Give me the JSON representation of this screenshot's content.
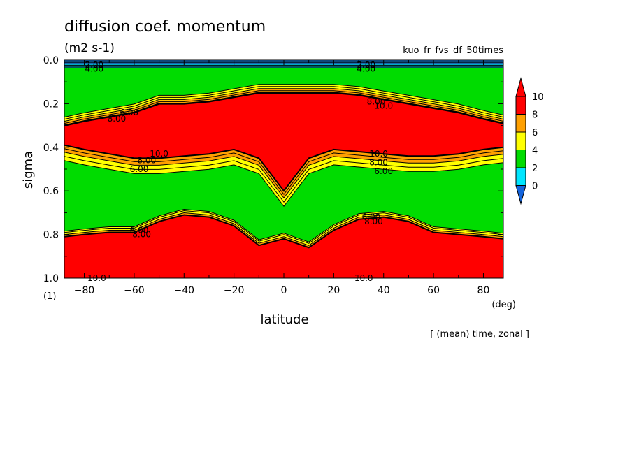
{
  "chart_data": {
    "type": "contour",
    "title": "diffusion coef. momentum",
    "units": "(m2 s-1)",
    "run_name": "kuo_fr_fvs_df_50times",
    "footnote": "[ (mean) time, zonal ]",
    "xlabel": "latitude",
    "x_unit": "(deg)",
    "ylabel": "sigma",
    "y_unit": "(1)",
    "xlim": [
      -88,
      88
    ],
    "ylim": [
      0.0,
      1.0
    ],
    "y_inverted": true,
    "x_ticks": [
      -80,
      -60,
      -40,
      -20,
      0,
      20,
      40,
      60,
      80
    ],
    "x_tick_labels": [
      "−80",
      "−60",
      "−40",
      "−20",
      "0",
      "20",
      "40",
      "60",
      "80"
    ],
    "y_ticks": [
      0.0,
      0.2,
      0.4,
      0.6,
      0.8,
      1.0
    ],
    "y_tick_labels": [
      "0.0",
      "0.2",
      "0.4",
      "0.6",
      "0.8",
      "1.0"
    ],
    "colorbar": {
      "levels": [
        0,
        2,
        4,
        6,
        8,
        10
      ],
      "labels": [
        "0",
        "2",
        "4",
        "6",
        "8",
        "10"
      ],
      "colors": [
        "#1e8cf0",
        "#00e6ff",
        "#00dc00",
        "#ffff00",
        "#ffa000",
        "#ff0000"
      ],
      "under_color": "#1464dc",
      "over_color": "#ff0000"
    },
    "contour_labels": [
      "2.00",
      "4.00",
      "6.00",
      "8.00",
      "10.0"
    ],
    "regions": {
      "surface_layer_top_sigma": 0.035,
      "upper_red_band": {
        "lat": [
          -88,
          -80,
          -70,
          -60,
          -50,
          -40,
          -30,
          -20,
          -10,
          0,
          10,
          20,
          30,
          40,
          50,
          60,
          70,
          80,
          88
        ],
        "top_sigma": [
          0.3,
          0.28,
          0.26,
          0.24,
          0.2,
          0.2,
          0.19,
          0.17,
          0.15,
          0.15,
          0.15,
          0.15,
          0.16,
          0.18,
          0.2,
          0.22,
          0.24,
          0.27,
          0.29
        ],
        "bottom_sigma": [
          0.39,
          0.41,
          0.43,
          0.45,
          0.45,
          0.44,
          0.43,
          0.41,
          0.45,
          0.6,
          0.45,
          0.41,
          0.42,
          0.43,
          0.44,
          0.44,
          0.43,
          0.41,
          0.4
        ]
      },
      "lower_red_band": {
        "lat": [
          -88,
          -80,
          -70,
          -60,
          -50,
          -40,
          -30,
          -20,
          -10,
          0,
          10,
          20,
          30,
          40,
          50,
          60,
          70,
          80,
          88
        ],
        "top_sigma": [
          0.81,
          0.8,
          0.79,
          0.79,
          0.74,
          0.71,
          0.72,
          0.76,
          0.85,
          0.82,
          0.86,
          0.78,
          0.73,
          0.72,
          0.74,
          0.79,
          0.8,
          0.81,
          0.82
        ]
      }
    }
  }
}
